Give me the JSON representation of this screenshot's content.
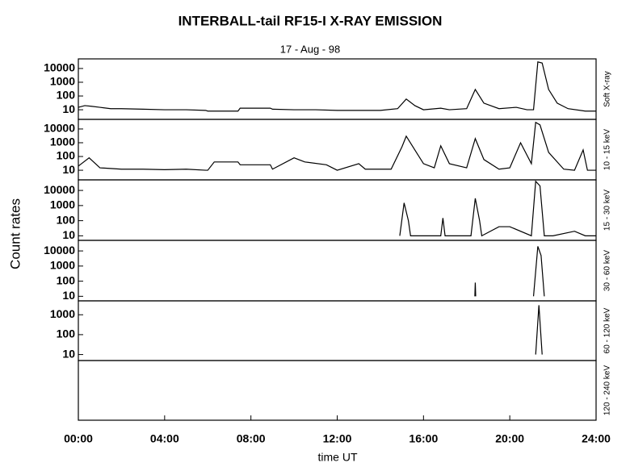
{
  "figure": {
    "title": "INTERBALL-tail  RF15-I   X-RAY  EMISSION",
    "subtitle": "17 - Aug - 98",
    "ylabel": "Count  rates",
    "xlabel": "time UT",
    "xlim": [
      0,
      24
    ],
    "xticks": [
      {
        "value": 0,
        "label": "00:00"
      },
      {
        "value": 4,
        "label": "04:00"
      },
      {
        "value": 8,
        "label": "08:00"
      },
      {
        "value": 12,
        "label": "12:00"
      },
      {
        "value": 16,
        "label": "16:00"
      },
      {
        "value": 20,
        "label": "20:00"
      },
      {
        "value": 24,
        "label": "24:00"
      }
    ]
  },
  "chart_data": [
    {
      "type": "line",
      "ylabel": "Soft X-ray",
      "log": true,
      "color": "#000000",
      "ylim": [
        2,
        50000
      ],
      "yticks": [
        10,
        100,
        1000,
        10000
      ],
      "x": [
        0,
        0.3,
        0.6,
        1,
        1.5,
        2,
        3,
        4,
        5,
        5.9,
        6,
        7.4,
        7.5,
        8.9,
        9,
        10,
        11,
        12,
        13,
        14,
        14.8,
        15.2,
        15.6,
        16,
        16.8,
        17.2,
        18,
        18.4,
        18.8,
        19.5,
        20.3,
        20.8,
        21.1,
        21.3,
        21.5,
        21.8,
        22.2,
        22.7,
        23.5,
        24
      ],
      "values": [
        15,
        20,
        18,
        15,
        12,
        12,
        11,
        10,
        10,
        9,
        8,
        8,
        13,
        13,
        11,
        10,
        10,
        9,
        9,
        9,
        12,
        60,
        20,
        10,
        13,
        10,
        12,
        300,
        30,
        12,
        15,
        10,
        10,
        30000,
        25000,
        300,
        30,
        12,
        8,
        8
      ]
    },
    {
      "type": "line",
      "ylabel": "10 - 15 keV",
      "log": true,
      "color": "#000000",
      "ylim": [
        2,
        50000
      ],
      "yticks": [
        10,
        100,
        1000,
        10000
      ],
      "x": [
        0,
        0.5,
        1,
        2,
        3,
        4,
        5,
        5.9,
        6,
        6.3,
        7.4,
        7.5,
        8.9,
        9,
        10,
        10.5,
        11.5,
        12,
        13,
        13.3,
        14.5,
        15,
        15.2,
        15.6,
        16,
        16.5,
        16.8,
        17.2,
        18,
        18.4,
        18.8,
        19.5,
        20,
        20.5,
        21,
        21.2,
        21.4,
        21.8,
        22.5,
        23,
        23.4,
        23.6,
        24
      ],
      "values": [
        20,
        80,
        15,
        12,
        12,
        11,
        12,
        10,
        10,
        40,
        40,
        25,
        25,
        12,
        80,
        40,
        25,
        10,
        30,
        12,
        12,
        500,
        3000,
        300,
        30,
        15,
        600,
        30,
        15,
        2000,
        60,
        12,
        15,
        1000,
        30,
        30000,
        20000,
        200,
        12,
        10,
        300,
        10,
        10
      ]
    },
    {
      "type": "line",
      "ylabel": "15 - 30 keV",
      "log": true,
      "color": "#000000",
      "ylim": [
        5,
        50000
      ],
      "yticks": [
        10,
        100,
        1000,
        10000
      ],
      "x": [
        14.9,
        15.1,
        15.3,
        15.4,
        16,
        16.8,
        16.9,
        17,
        18.2,
        18.4,
        18.6,
        18.7,
        19.5,
        20,
        21,
        21.2,
        21.4,
        21.6,
        22,
        23,
        23.5,
        24
      ],
      "values": [
        10,
        1500,
        100,
        10,
        10,
        10,
        150,
        10,
        10,
        3000,
        100,
        10,
        40,
        40,
        10,
        40000,
        20000,
        10,
        10,
        20,
        10,
        10
      ]
    },
    {
      "type": "line",
      "ylabel": "30 - 60 keV",
      "log": true,
      "color": "#000000",
      "ylim": [
        5,
        50000
      ],
      "yticks": [
        10,
        100,
        1000,
        10000
      ],
      "x": [
        18.38,
        18.4,
        18.42,
        20,
        21.1,
        21.3,
        21.45,
        21.6
      ],
      "values": [
        10,
        80,
        10,
        null,
        10,
        20000,
        5000,
        10
      ]
    },
    {
      "type": "line",
      "ylabel": "60 - 120 keV",
      "log": true,
      "color": "#000000",
      "ylim": [
        5,
        5000
      ],
      "yticks": [
        10,
        100,
        1000
      ],
      "x": [
        21.2,
        21.35,
        21.5
      ],
      "values": [
        10,
        3000,
        10
      ]
    },
    {
      "type": "line",
      "ylabel": "120 - 240 keV"
    }
  ]
}
